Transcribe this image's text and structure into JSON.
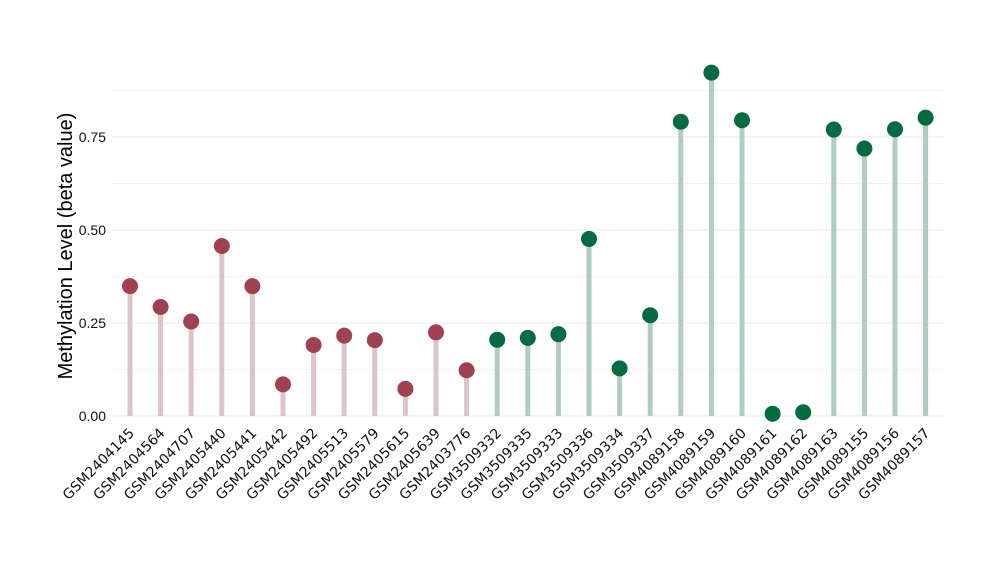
{
  "chart_data": {
    "type": "lollipop",
    "title": "",
    "xlabel": "",
    "ylabel": "Methylation Level (beta value)",
    "ylim": [
      0,
      0.97
    ],
    "yticks": [
      0.0,
      0.25,
      0.5,
      0.75
    ],
    "ytick_labels": [
      "0.00",
      "0.25",
      "0.50",
      "0.75"
    ],
    "grid": true,
    "legend": "none",
    "categories": [
      "GSM2404145",
      "GSM2404564",
      "GSM2404707",
      "GSM2405440",
      "GSM2405441",
      "GSM2405442",
      "GSM2405492",
      "GSM2405513",
      "GSM2405579",
      "GSM2405615",
      "GSM2405639",
      "GSM2403776",
      "GSM3509332",
      "GSM3509335",
      "GSM3509333",
      "GSM3509336",
      "GSM3509334",
      "GSM3509337",
      "GSM4089158",
      "GSM4089159",
      "GSM4089160",
      "GSM4089161",
      "GSM4089162",
      "GSM4089163",
      "GSM4089155",
      "GSM4089156",
      "GSM4089157"
    ],
    "values": [
      0.349,
      0.293,
      0.254,
      0.457,
      0.349,
      0.085,
      0.191,
      0.216,
      0.204,
      0.073,
      0.225,
      0.123,
      0.205,
      0.21,
      0.22,
      0.476,
      0.128,
      0.271,
      0.791,
      0.923,
      0.795,
      0.006,
      0.01,
      0.77,
      0.719,
      0.771,
      0.802
    ],
    "groups": [
      0,
      0,
      0,
      0,
      0,
      0,
      0,
      0,
      0,
      0,
      0,
      0,
      1,
      1,
      1,
      1,
      1,
      1,
      1,
      1,
      1,
      1,
      1,
      1,
      1,
      1,
      1
    ],
    "group_colors": {
      "point": [
        "#9e4150",
        "#046a40"
      ],
      "stem": [
        "#dcc4c8",
        "#b1cdc2"
      ]
    }
  }
}
